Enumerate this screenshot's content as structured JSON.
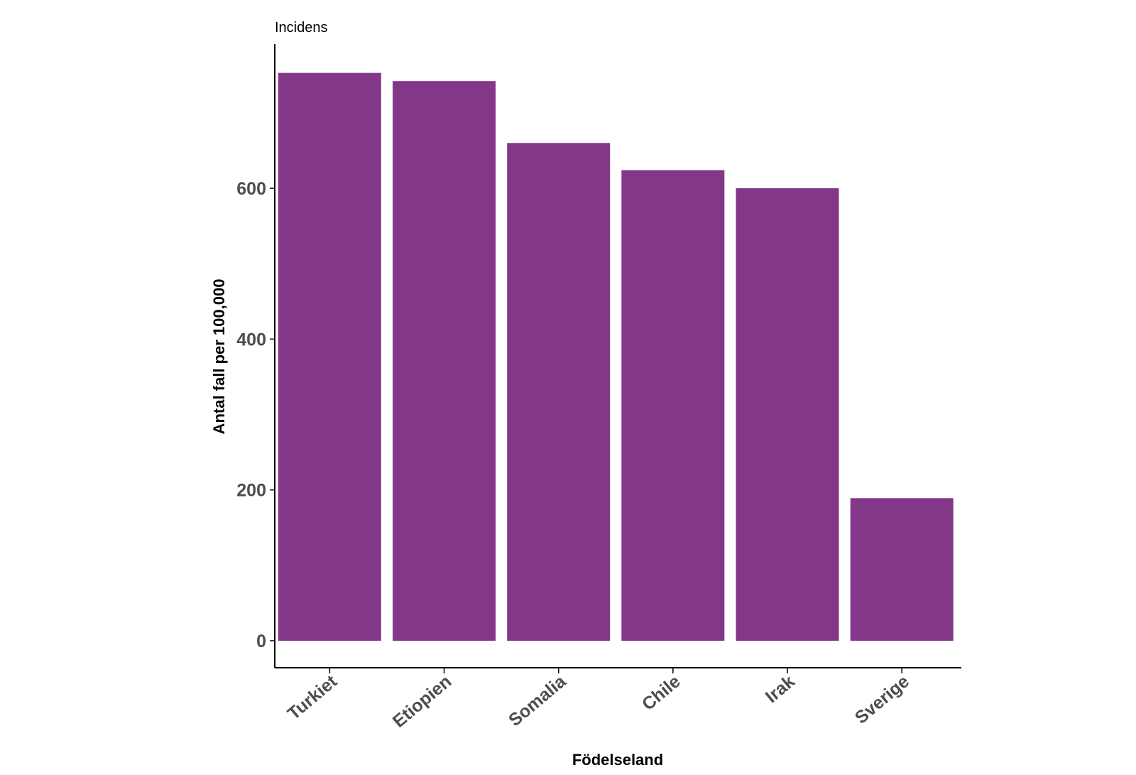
{
  "chart_data": {
    "type": "bar",
    "title": "Incidens",
    "xlabel": "Födelseland",
    "ylabel": "Antal fall per 100,000",
    "categories": [
      "Turkiet",
      "Etiopien",
      "Somalia",
      "Chile",
      "Irak",
      "Sverige"
    ],
    "values": [
      753,
      742,
      660,
      624,
      600,
      189
    ],
    "ylim": [
      -37,
      790
    ],
    "yticks": [
      0,
      200,
      400,
      600
    ],
    "ytick_labels": [
      "0",
      "200",
      "400",
      "600"
    ],
    "grid": false,
    "legend": "none",
    "bar_color": "#823789",
    "axis_color": "#000000"
  }
}
